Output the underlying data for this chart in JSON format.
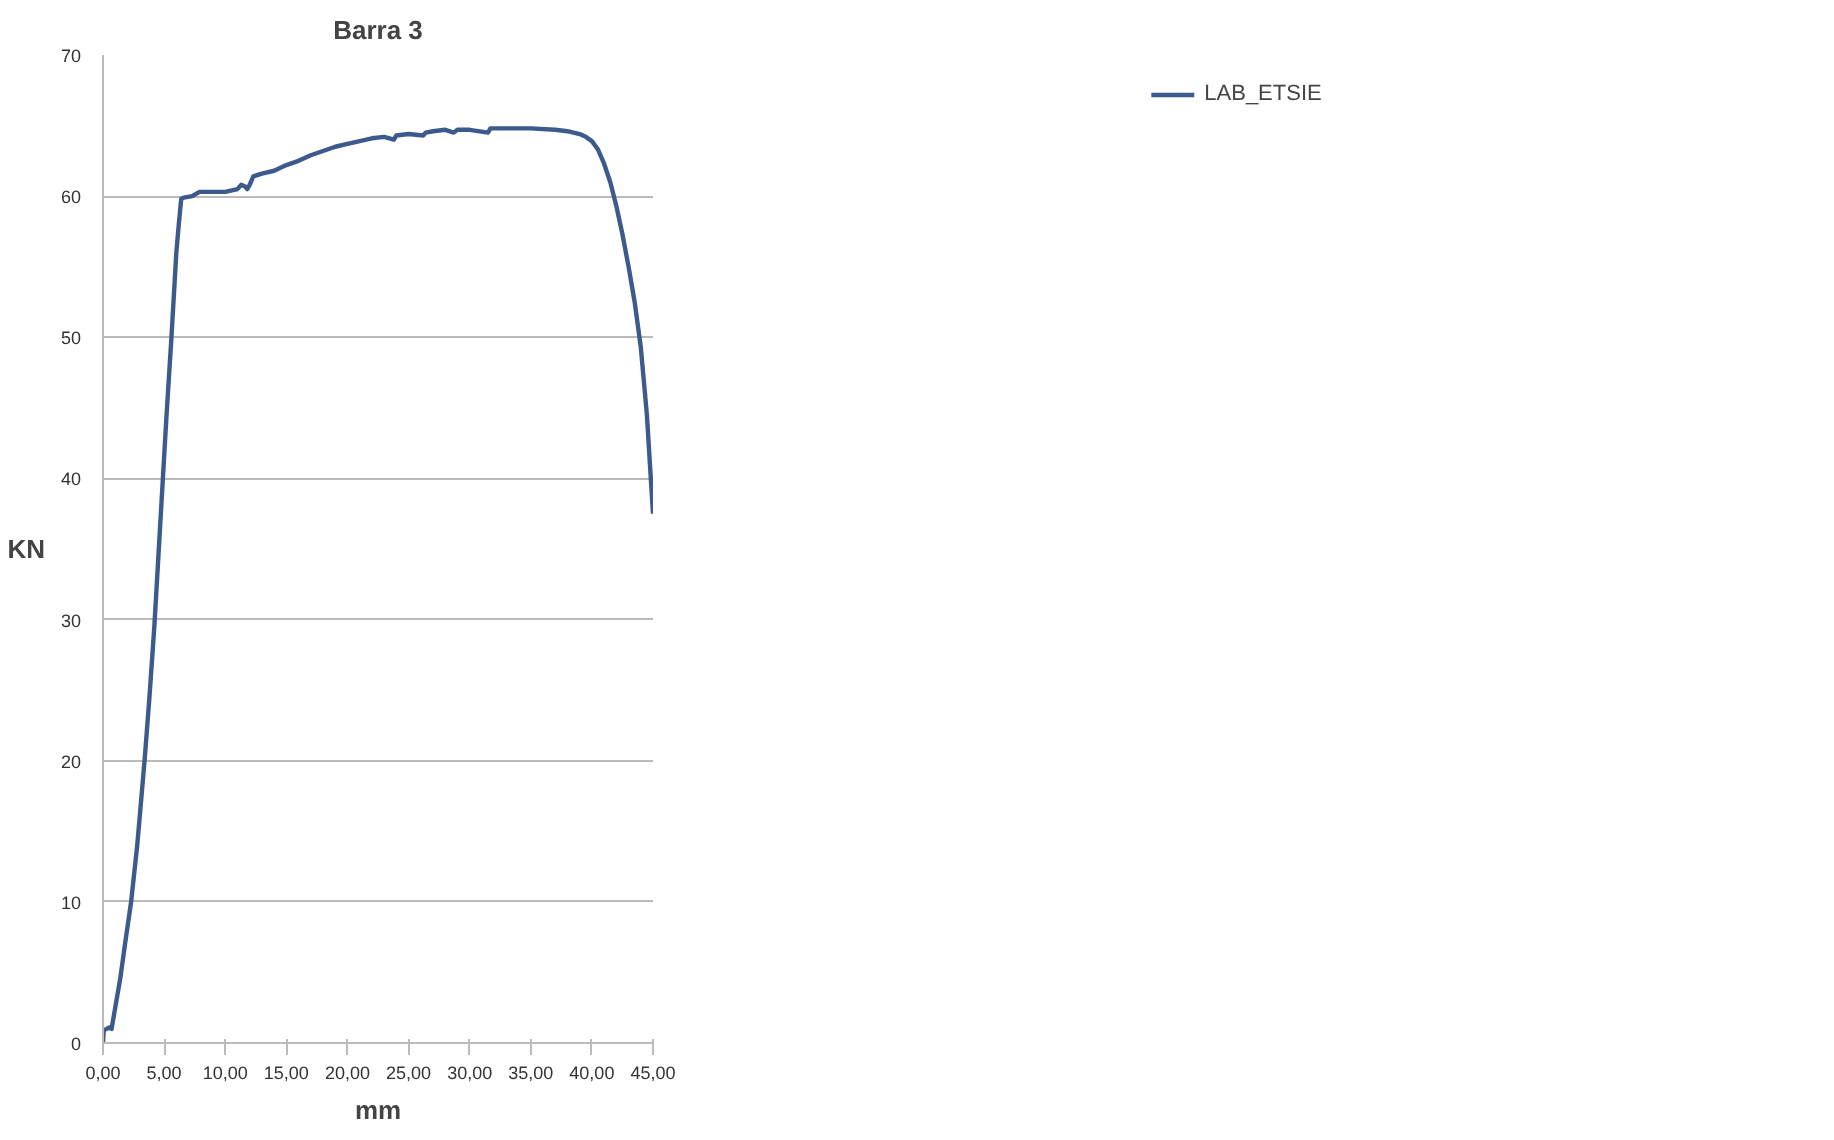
{
  "chart_data": {
    "type": "line",
    "title": "Barra 3",
    "xlabel": "mm",
    "ylabel": "KN",
    "xlim": [
      0,
      45
    ],
    "ylim": [
      0,
      70
    ],
    "xticks": [
      {
        "value": 0,
        "label": "0,00"
      },
      {
        "value": 5,
        "label": "5,00"
      },
      {
        "value": 10,
        "label": "10,00"
      },
      {
        "value": 15,
        "label": "15,00"
      },
      {
        "value": 20,
        "label": "20,00"
      },
      {
        "value": 25,
        "label": "25,00"
      },
      {
        "value": 30,
        "label": "30,00"
      },
      {
        "value": 35,
        "label": "35,00"
      },
      {
        "value": 40,
        "label": "40,00"
      },
      {
        "value": 45,
        "label": "45,00"
      }
    ],
    "yticks": [
      0,
      10,
      20,
      30,
      40,
      50,
      60,
      70
    ],
    "grid": "y",
    "legend": "top right",
    "marker": "none",
    "line_style": "solid",
    "series": [
      {
        "name": "LAB_ETSIE",
        "color": "#3c5a8c",
        "x": [
          0,
          0.06,
          0.3,
          0.5,
          0.7,
          1.0,
          1.4,
          1.8,
          2.3,
          2.8,
          3.4,
          3.8,
          4.2,
          4.5,
          4.9,
          5.2,
          5.6,
          5.8,
          6.0,
          6.2,
          6.4,
          6.6,
          7.3,
          7.9,
          9.0,
          10.0,
          11.0,
          11.3,
          11.6,
          11.8,
          12.0,
          12.3,
          13.0,
          14.0,
          15.0,
          16.0,
          17.0,
          18.0,
          19.0,
          20.0,
          21.0,
          22.0,
          23.0,
          23.8,
          24.0,
          25.0,
          26.2,
          26.4,
          27.0,
          28.0,
          28.7,
          29.0,
          30.0,
          31.5,
          31.7,
          32.0,
          33.0,
          35.0,
          37.0,
          38.0,
          39.0,
          39.5,
          40.0,
          40.5,
          41.0,
          41.5,
          42.0,
          42.5,
          43.0,
          43.5,
          44.0,
          44.5,
          45.0
        ],
        "values": [
          0,
          0.9,
          1.0,
          1.1,
          1.0,
          2.5,
          4.5,
          7,
          10,
          14,
          20,
          24.5,
          29.5,
          34,
          40,
          44.5,
          50,
          53,
          56,
          58,
          59.8,
          59.9,
          60.0,
          60.3,
          60.3,
          60.3,
          60.5,
          60.8,
          60.7,
          60.5,
          60.8,
          61.4,
          61.6,
          61.8,
          62.2,
          62.5,
          62.9,
          63.2,
          63.5,
          63.7,
          63.9,
          64.1,
          64.2,
          64.0,
          64.3,
          64.4,
          64.3,
          64.5,
          64.6,
          64.7,
          64.5,
          64.7,
          64.7,
          64.5,
          64.8,
          64.8,
          64.8,
          64.8,
          64.7,
          64.6,
          64.4,
          64.2,
          63.9,
          63.3,
          62.3,
          61.0,
          59.3,
          57.3,
          55.0,
          52.5,
          49.3,
          44.5,
          37.5
        ]
      }
    ]
  }
}
